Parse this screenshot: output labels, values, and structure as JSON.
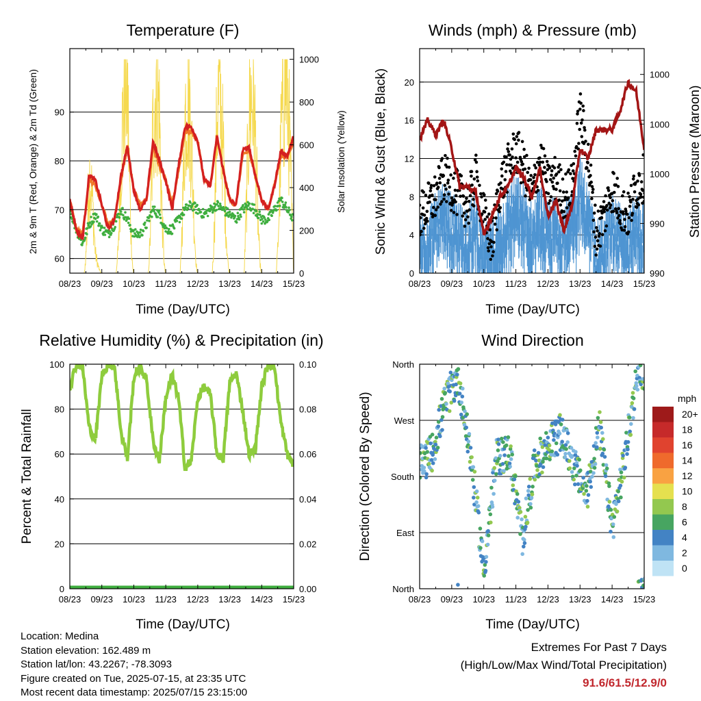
{
  "colors": {
    "temp_2m": "#d42020",
    "temp_9m": "#f07828",
    "dewpoint": "#3fae3f",
    "solar": "#f5d94f",
    "wind": "#000000",
    "gust": "#4f95d2",
    "pressure": "#a31515",
    "humidity": "#8ecc3d",
    "precip": "#3fae3f"
  },
  "x_ticks": [
    "08/23",
    "09/23",
    "10/23",
    "11/23",
    "12/23",
    "13/23",
    "14/23",
    "15/23"
  ],
  "x_label": "Time (Day/UTC)",
  "chart_data": [
    {
      "type": "line",
      "title": "Temperature (F)",
      "ylabel": "2m & 9m T (Red, Orange) & 2m Td (Green)",
      "y2label": "Solar Insolation (Yellow)",
      "ylim": [
        57,
        103
      ],
      "yticks": [
        60,
        70,
        80,
        90
      ],
      "y2lim": [
        0,
        1050
      ],
      "y2ticks": [
        0,
        200,
        400,
        600,
        800,
        1000
      ],
      "x": [
        8.0,
        8.2,
        8.4,
        8.6,
        8.8,
        9.0,
        9.2,
        9.4,
        9.6,
        9.8,
        10.0,
        10.2,
        10.4,
        10.6,
        10.8,
        11.0,
        11.2,
        11.4,
        11.6,
        11.8,
        12.0,
        12.2,
        12.4,
        12.6,
        12.8,
        13.0,
        13.2,
        13.4,
        13.6,
        13.8,
        14.0,
        14.2,
        14.4,
        14.6,
        14.8,
        15.0
      ],
      "series": [
        {
          "name": "2m T",
          "values": [
            72,
            66,
            64,
            77,
            76,
            71,
            66,
            68,
            77,
            83,
            74,
            70,
            72,
            84,
            80,
            76,
            70,
            79,
            87,
            87,
            84,
            76,
            75,
            85,
            78,
            72,
            71,
            82,
            83,
            77,
            72,
            70,
            75,
            82,
            81,
            85
          ]
        },
        {
          "name": "9m T",
          "values": [
            72,
            66,
            65,
            76,
            75,
            71,
            67,
            68,
            76,
            83,
            74,
            71,
            72,
            83,
            79,
            76,
            71,
            78,
            86,
            86,
            84,
            76,
            75,
            85,
            78,
            72,
            71,
            81,
            82,
            77,
            72,
            70,
            75,
            81,
            81,
            84
          ]
        },
        {
          "name": "2m Td",
          "values": [
            70,
            66,
            63,
            67,
            69,
            66,
            65,
            67,
            70,
            68,
            65,
            65,
            67,
            70,
            69,
            66,
            66,
            68,
            70,
            71,
            70,
            69,
            70,
            71,
            70,
            69,
            68,
            70,
            71,
            70,
            68,
            68,
            70,
            72,
            70,
            68
          ]
        },
        {
          "name": "Solar",
          "axis": "y2",
          "values": [
            0,
            0,
            0,
            600,
            100,
            0,
            0,
            0,
            700,
            950,
            0,
            0,
            0,
            900,
            800,
            0,
            0,
            300,
            950,
            700,
            0,
            0,
            0,
            980,
            600,
            0,
            0,
            600,
            950,
            700,
            0,
            0,
            0,
            800,
            950,
            800
          ]
        }
      ]
    },
    {
      "type": "scatter",
      "title": "Winds (mph) & Pressure (mb)",
      "ylabel": "Sonic Wind & Gust (Blue, Black)",
      "y2label": "Station Pressure (Maroon)",
      "ylim": [
        0,
        23.5
      ],
      "yticks": [
        0,
        4,
        8,
        12,
        16,
        20
      ],
      "y2ticks": [
        "990",
        "990",
        "1000",
        "1000",
        "1000"
      ],
      "y2tick_values": [
        0,
        5.2,
        10.4,
        15.6,
        20.8
      ],
      "x": [
        8.0,
        8.25,
        8.5,
        8.75,
        9.0,
        9.25,
        9.5,
        9.75,
        10.0,
        10.25,
        10.5,
        10.75,
        11.0,
        11.25,
        11.5,
        11.75,
        12.0,
        12.25,
        12.5,
        12.75,
        13.0,
        13.25,
        13.5,
        13.75,
        14.0,
        14.25,
        14.5,
        14.75,
        15.0
      ],
      "series": [
        {
          "name": "Gust",
          "values": [
            6,
            7,
            8,
            10,
            9,
            8,
            7,
            10,
            6,
            3,
            9,
            11,
            13,
            11,
            8,
            12,
            9,
            10,
            8,
            9,
            17,
            12,
            4,
            6,
            9,
            7,
            6,
            9,
            10
          ]
        },
        {
          "name": "Wind",
          "values": [
            3,
            4,
            5,
            6,
            5,
            4,
            4,
            5,
            2,
            2,
            4,
            6,
            7,
            6,
            4,
            6,
            4,
            5,
            4,
            5,
            9,
            6,
            2,
            3,
            5,
            4,
            3,
            5,
            4
          ]
        },
        {
          "name": "Pressure",
          "axis": "y2",
          "values": [
            14,
            16,
            14.5,
            16,
            13,
            9,
            9,
            8.5,
            4,
            6,
            8,
            9,
            11,
            10,
            8,
            11,
            6,
            7.5,
            4.5,
            7,
            13,
            12,
            15,
            15,
            15,
            17,
            20,
            19,
            13
          ]
        }
      ]
    },
    {
      "type": "line",
      "title": "Relative Humidity (%) & Precipitation (in)",
      "ylabel": "Percent & Total Rainfall",
      "ylim": [
        0,
        100
      ],
      "yticks": [
        0,
        20,
        40,
        60,
        80,
        100
      ],
      "y2ticks": [
        "0.00",
        "0.02",
        "0.04",
        "0.06",
        "0.08",
        "0.10"
      ],
      "x": [
        8.0,
        8.2,
        8.4,
        8.6,
        8.8,
        9.0,
        9.2,
        9.4,
        9.6,
        9.8,
        10.0,
        10.2,
        10.4,
        10.6,
        10.8,
        11.0,
        11.2,
        11.4,
        11.6,
        11.8,
        12.0,
        12.2,
        12.4,
        12.6,
        12.8,
        13.0,
        13.2,
        13.4,
        13.6,
        13.8,
        14.0,
        14.2,
        14.4,
        14.6,
        14.8,
        15.0
      ],
      "series": [
        {
          "name": "Relative Humidity",
          "values": [
            90,
            100,
            99,
            72,
            66,
            95,
            100,
            99,
            70,
            58,
            94,
            99,
            93,
            66,
            57,
            85,
            95,
            85,
            54,
            57,
            85,
            90,
            86,
            60,
            58,
            92,
            96,
            80,
            60,
            62,
            90,
            100,
            99,
            74,
            60,
            55
          ]
        },
        {
          "name": "Precipitation",
          "values": [
            0,
            0,
            0,
            0,
            0,
            0,
            0,
            0,
            0,
            0,
            0,
            0,
            0,
            0,
            0,
            0,
            0,
            0,
            0,
            0,
            0,
            0,
            0,
            0,
            0,
            0,
            0,
            0,
            0,
            0,
            0,
            0,
            0,
            0,
            0,
            0
          ]
        }
      ]
    },
    {
      "type": "scatter",
      "title": "Wind Direction",
      "ylabel": "Direction (Colored By Speed)",
      "y_ticks": [
        "North",
        "East",
        "South",
        "West",
        "North"
      ],
      "ylim": [
        0,
        360
      ],
      "colorbar": {
        "unit": "mph",
        "labels": [
          "20+",
          "18",
          "16",
          "14",
          "12",
          "10",
          "8",
          "6",
          "4",
          "2",
          "0"
        ],
        "colors": [
          "#9e1a1a",
          "#c62a2a",
          "#e0432f",
          "#ef6a2c",
          "#f9a242",
          "#e5e04f",
          "#93c84f",
          "#47a561",
          "#4383c4",
          "#7fb8e0",
          "#bfe3f5"
        ]
      },
      "x": [
        8.1,
        8.4,
        8.8,
        9.2,
        9.6,
        10.0,
        10.4,
        10.8,
        11.2,
        11.6,
        12.0,
        12.4,
        12.8,
        13.2,
        13.6,
        14.0,
        14.4,
        14.8
      ],
      "series": [
        {
          "name": "Direction",
          "values": [
            200,
            220,
            300,
            340,
            210,
            30,
            210,
            220,
            80,
            200,
            230,
            250,
            200,
            150,
            260,
            100,
            210,
            350
          ]
        }
      ]
    }
  ],
  "info": {
    "location": "Location: Medina",
    "elevation": "Station elevation: 162.489 m",
    "latlon": "Station lat/lon: 43.2267; -78.3093",
    "created": "Figure created on Tue, 2025-07-15, at 23:35 UTC",
    "recent": "Most recent data timestamp: 2025/07/15 23:15:00"
  },
  "extremes": {
    "title": "Extremes For Past 7 Days",
    "subtitle": "(High/Low/Max Wind/Total Precipitation)",
    "values": "91.6/61.5/12.9/0"
  }
}
